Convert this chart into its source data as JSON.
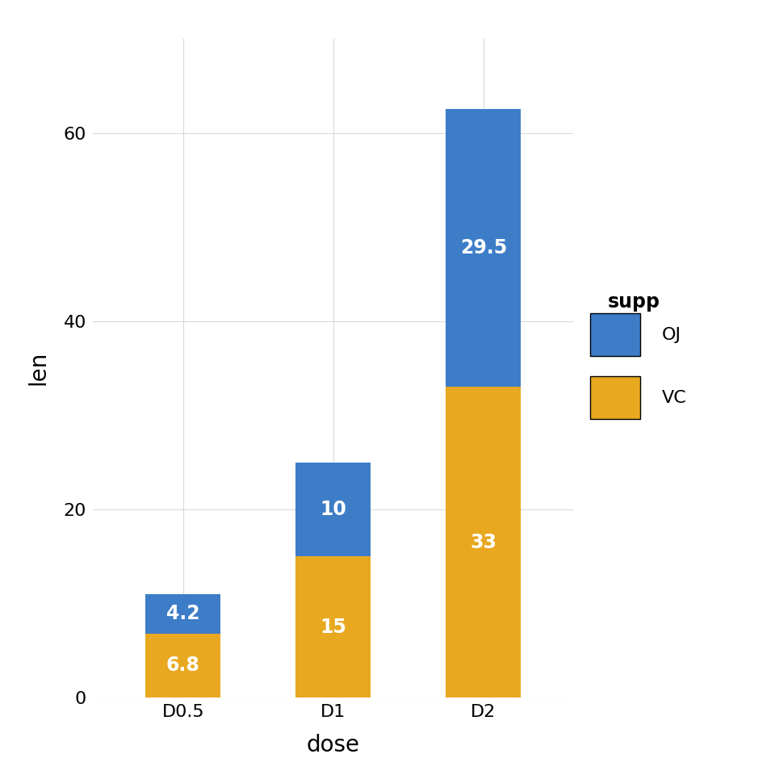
{
  "categories": [
    "D0.5",
    "D1",
    "D2"
  ],
  "vc_values": [
    6.8,
    15.0,
    33.0
  ],
  "oj_values": [
    4.2,
    10.0,
    29.5
  ],
  "vc_color": "#E8A820",
  "oj_color": "#3D7DC8",
  "xlabel": "dose",
  "ylabel": "len",
  "ylim": [
    0,
    70
  ],
  "yticks": [
    0,
    20,
    40,
    60
  ],
  "legend_title": "supp",
  "bar_width": 0.5,
  "background_color": "#FFFFFF",
  "panel_background": "#FFFFFF",
  "grid_color": "#D9D9D9",
  "label_fontsize": 20,
  "tick_fontsize": 16,
  "legend_fontsize": 16,
  "legend_title_fontsize": 17,
  "annotation_fontsize": 17,
  "vc_labels": [
    "6.8",
    "15",
    "33"
  ],
  "oj_labels": [
    "4.2",
    "10",
    "29.5"
  ]
}
